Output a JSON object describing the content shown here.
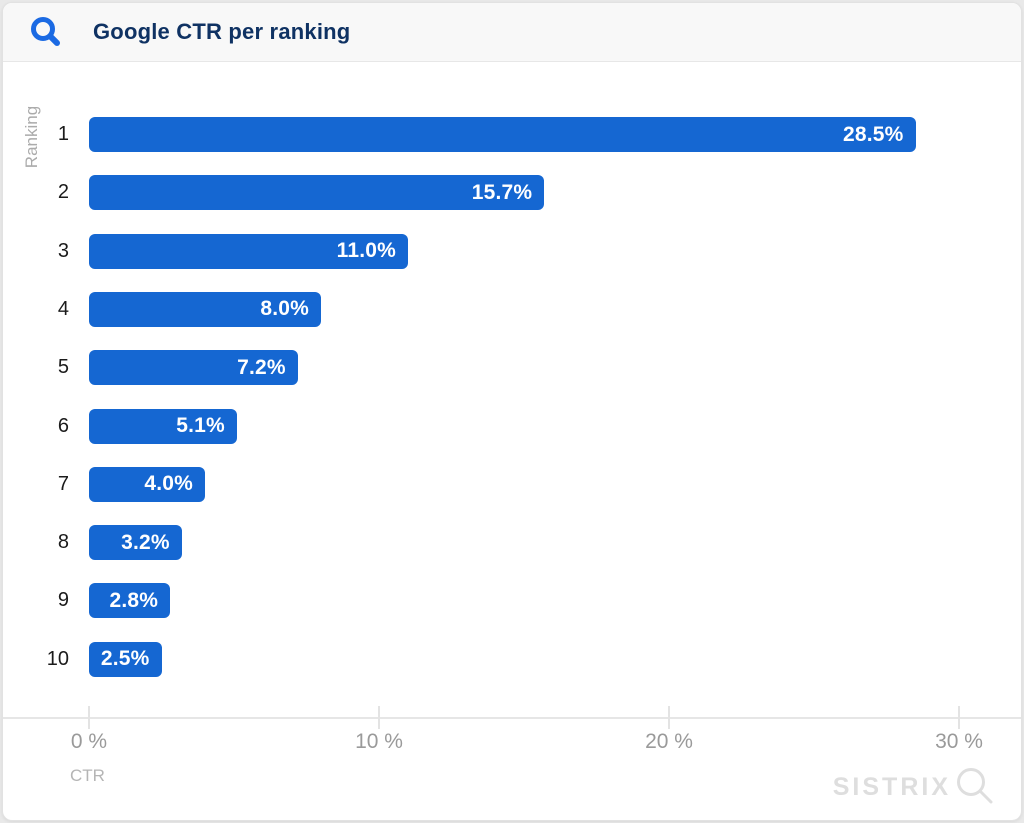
{
  "header": {
    "title": "Google CTR per ranking"
  },
  "chart_data": {
    "type": "bar",
    "orientation": "horizontal",
    "title": "Google CTR per ranking",
    "categories": [
      "1",
      "2",
      "3",
      "4",
      "5",
      "6",
      "7",
      "8",
      "9",
      "10"
    ],
    "values": [
      28.5,
      15.7,
      11.0,
      8.0,
      7.2,
      5.1,
      4.0,
      3.2,
      2.8,
      2.5
    ],
    "value_labels": [
      "28.5%",
      "15.7%",
      "11.0%",
      "8.0%",
      "7.2%",
      "5.1%",
      "4.0%",
      "3.2%",
      "2.8%",
      "2.5%"
    ],
    "xlabel": "CTR",
    "ylabel": "Ranking",
    "x_tick_labels": [
      "0 %",
      "10 %",
      "20 %",
      "30 %"
    ],
    "x_tick_values": [
      0,
      10,
      20,
      30
    ],
    "xlim": [
      0,
      32.2
    ],
    "grid": false,
    "legend": false,
    "bar_color": "#1567d2",
    "label_color": "#ffffff"
  },
  "watermark": {
    "text": "SISTRIX"
  },
  "colors": {
    "title": "#0f3263",
    "logo_blue": "#1b6ae3",
    "axis_gray": "#e3e3e3",
    "tick_text": "#9a9a9a",
    "muted_text": "#b0b0b0",
    "watermark_gray": "#dedede"
  }
}
